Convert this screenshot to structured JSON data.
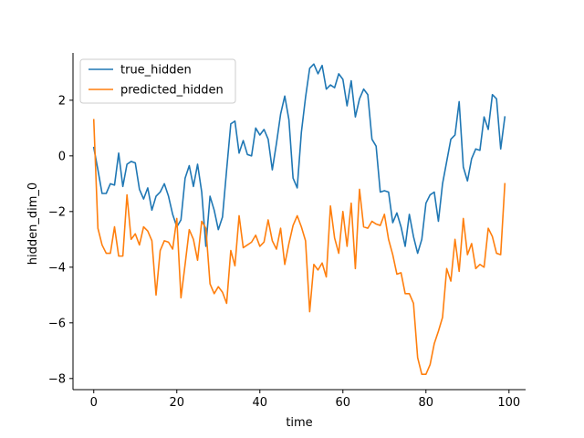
{
  "chart_data": {
    "type": "line",
    "xlabel": "time",
    "ylabel": "hidden_dim_0",
    "xlim": [
      -5,
      104
    ],
    "ylim": [
      -8.4,
      3.7
    ],
    "xticks": [
      0,
      20,
      40,
      60,
      80,
      100
    ],
    "yticks": [
      -8,
      -6,
      -4,
      -2,
      0,
      2
    ],
    "grid": false,
    "legend": "top-left",
    "series": [
      {
        "name": "true_hidden",
        "color": "#1f77b4",
        "x": [
          0,
          1,
          2,
          3,
          4,
          5,
          6,
          7,
          8,
          9,
          10,
          11,
          12,
          13,
          14,
          15,
          16,
          17,
          18,
          19,
          20,
          21,
          22,
          23,
          24,
          25,
          26,
          27,
          28,
          29,
          30,
          31,
          32,
          33,
          34,
          35,
          36,
          37,
          38,
          39,
          40,
          41,
          42,
          43,
          44,
          45,
          46,
          47,
          48,
          49,
          50,
          51,
          52,
          53,
          54,
          55,
          56,
          57,
          58,
          59,
          60,
          61,
          62,
          63,
          64,
          65,
          66,
          67,
          68,
          69,
          70,
          71,
          72,
          73,
          74,
          75,
          76,
          77,
          78,
          79,
          80,
          81,
          82,
          83,
          84,
          85,
          86,
          87,
          88,
          89,
          90,
          91,
          92,
          93,
          94,
          95,
          96,
          97,
          98,
          99
        ],
        "values": [
          0.3,
          -0.5,
          -1.35,
          -1.35,
          -1.0,
          -1.05,
          0.1,
          -1.1,
          -0.3,
          -0.2,
          -0.25,
          -1.2,
          -1.55,
          -1.15,
          -1.95,
          -1.45,
          -1.3,
          -1.0,
          -1.45,
          -2.1,
          -2.55,
          -2.3,
          -0.8,
          -0.35,
          -1.1,
          -0.3,
          -1.3,
          -3.25,
          -1.45,
          -1.95,
          -2.65,
          -2.2,
          -0.5,
          1.15,
          1.25,
          0.1,
          0.55,
          0.05,
          0.0,
          1.0,
          0.75,
          0.95,
          0.6,
          -0.5,
          0.45,
          1.5,
          2.15,
          1.3,
          -0.8,
          -1.15,
          0.85,
          2.1,
          3.15,
          3.3,
          2.95,
          3.25,
          2.4,
          2.55,
          2.45,
          2.95,
          2.75,
          1.8,
          2.7,
          1.4,
          2.05,
          2.4,
          2.2,
          0.6,
          0.35,
          -1.3,
          -1.25,
          -1.3,
          -2.4,
          -2.05,
          -2.55,
          -3.25,
          -2.1,
          -2.9,
          -3.5,
          -3.0,
          -1.7,
          -1.4,
          -1.3,
          -2.35,
          -1.0,
          -0.2,
          0.6,
          0.75,
          1.95,
          -0.4,
          -0.9,
          -0.1,
          0.25,
          0.2,
          1.4,
          0.95,
          2.2,
          2.05,
          0.25,
          1.4
        ]
      },
      {
        "name": "predicted_hidden",
        "color": "#ff7f0e",
        "x": [
          0,
          1,
          2,
          3,
          4,
          5,
          6,
          7,
          8,
          9,
          10,
          11,
          12,
          13,
          14,
          15,
          16,
          17,
          18,
          19,
          20,
          21,
          22,
          23,
          24,
          25,
          26,
          27,
          28,
          29,
          30,
          31,
          32,
          33,
          34,
          35,
          36,
          37,
          38,
          39,
          40,
          41,
          42,
          43,
          44,
          45,
          46,
          47,
          48,
          49,
          50,
          51,
          52,
          53,
          54,
          55,
          56,
          57,
          58,
          59,
          60,
          61,
          62,
          63,
          64,
          65,
          66,
          67,
          68,
          69,
          70,
          71,
          72,
          73,
          74,
          75,
          76,
          77,
          78,
          79,
          80,
          81,
          82,
          83,
          84,
          85,
          86,
          87,
          88,
          89,
          90,
          91,
          92,
          93,
          94,
          95,
          96,
          97,
          98,
          99
        ],
        "values": [
          1.3,
          -2.6,
          -3.2,
          -3.5,
          -3.5,
          -2.55,
          -3.6,
          -3.6,
          -1.4,
          -3.0,
          -2.8,
          -3.2,
          -2.55,
          -2.7,
          -3.05,
          -5.0,
          -3.4,
          -3.05,
          -3.1,
          -3.35,
          -2.25,
          -5.1,
          -3.9,
          -2.65,
          -3.0,
          -3.75,
          -2.35,
          -2.6,
          -4.6,
          -4.95,
          -4.7,
          -4.9,
          -5.3,
          -3.4,
          -3.95,
          -2.15,
          -3.3,
          -3.2,
          -3.1,
          -2.85,
          -3.25,
          -3.1,
          -2.3,
          -3.05,
          -3.35,
          -2.6,
          -3.9,
          -3.15,
          -2.5,
          -2.15,
          -2.55,
          -3.05,
          -5.6,
          -3.9,
          -4.1,
          -3.85,
          -4.35,
          -1.8,
          -2.95,
          -3.5,
          -2.0,
          -3.25,
          -1.7,
          -4.05,
          -1.2,
          -2.55,
          -2.6,
          -2.35,
          -2.45,
          -2.5,
          -2.1,
          -3.0,
          -3.55,
          -4.25,
          -4.2,
          -4.95,
          -4.95,
          -5.3,
          -7.25,
          -7.85,
          -7.85,
          -7.5,
          -6.75,
          -6.3,
          -5.8,
          -4.05,
          -4.5,
          -3.0,
          -4.15,
          -2.25,
          -3.55,
          -3.15,
          -4.05,
          -3.9,
          -4.0,
          -2.6,
          -2.9,
          -3.5,
          -3.55,
          -1.0
        ]
      }
    ]
  }
}
